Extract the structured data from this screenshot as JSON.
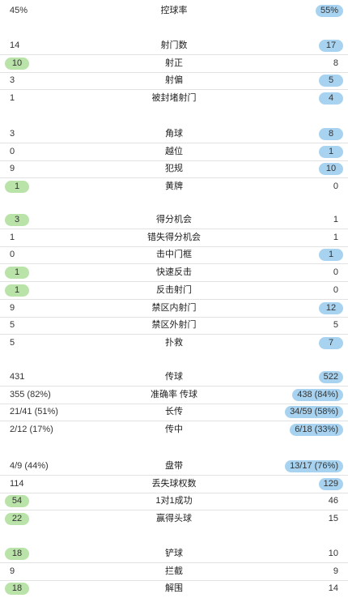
{
  "groups": [
    [
      {
        "label": "控球率",
        "home": "45%",
        "away": "55%",
        "hl": "away"
      }
    ],
    [
      {
        "label": "射门数",
        "home": "14",
        "away": "17",
        "hl": "away"
      },
      {
        "label": "射正",
        "home": "10",
        "away": "8",
        "hl": "home"
      },
      {
        "label": "射偏",
        "home": "3",
        "away": "5",
        "hl": "away"
      },
      {
        "label": "被封堵射门",
        "home": "1",
        "away": "4",
        "hl": "away"
      }
    ],
    [
      {
        "label": "角球",
        "home": "3",
        "away": "8",
        "hl": "away"
      },
      {
        "label": "越位",
        "home": "0",
        "away": "1",
        "hl": "away"
      },
      {
        "label": "犯规",
        "home": "9",
        "away": "10",
        "hl": "away"
      },
      {
        "label": "黄牌",
        "home": "1",
        "away": "0",
        "hl": "home"
      }
    ],
    [
      {
        "label": "得分机会",
        "home": "3",
        "away": "1",
        "hl": "home"
      },
      {
        "label": "错失得分机会",
        "home": "1",
        "away": "1",
        "hl": "none"
      },
      {
        "label": "击中门框",
        "home": "0",
        "away": "1",
        "hl": "away"
      },
      {
        "label": "快速反击",
        "home": "1",
        "away": "0",
        "hl": "home"
      },
      {
        "label": "反击射门",
        "home": "1",
        "away": "0",
        "hl": "home"
      },
      {
        "label": "禁区内射门",
        "home": "9",
        "away": "12",
        "hl": "away"
      },
      {
        "label": "禁区外射门",
        "home": "5",
        "away": "5",
        "hl": "none"
      },
      {
        "label": "扑救",
        "home": "5",
        "away": "7",
        "hl": "away"
      }
    ],
    [
      {
        "label": "传球",
        "home": "431",
        "away": "522",
        "hl": "away"
      },
      {
        "label": "准确率 传球",
        "home": "355 (82%)",
        "away": "438 (84%)",
        "hl": "away"
      },
      {
        "label": "长传",
        "home": "21/41 (51%)",
        "away": "34/59 (58%)",
        "hl": "away"
      },
      {
        "label": "传中",
        "home": "2/12 (17%)",
        "away": "6/18 (33%)",
        "hl": "away"
      }
    ],
    [
      {
        "label": "盘带",
        "home": "4/9 (44%)",
        "away": "13/17 (76%)",
        "hl": "away"
      },
      {
        "label": "丢失球权数",
        "home": "114",
        "away": "129",
        "hl": "away"
      },
      {
        "label": "1对1成功",
        "home": "54",
        "away": "46",
        "hl": "home"
      },
      {
        "label": "赢得头球",
        "home": "22",
        "away": "15",
        "hl": "home"
      }
    ],
    [
      {
        "label": "铲球",
        "home": "18",
        "away": "10",
        "hl": "home"
      },
      {
        "label": "拦截",
        "home": "9",
        "away": "9",
        "hl": "none"
      },
      {
        "label": "解围",
        "home": "18",
        "away": "14",
        "hl": "home"
      }
    ]
  ]
}
